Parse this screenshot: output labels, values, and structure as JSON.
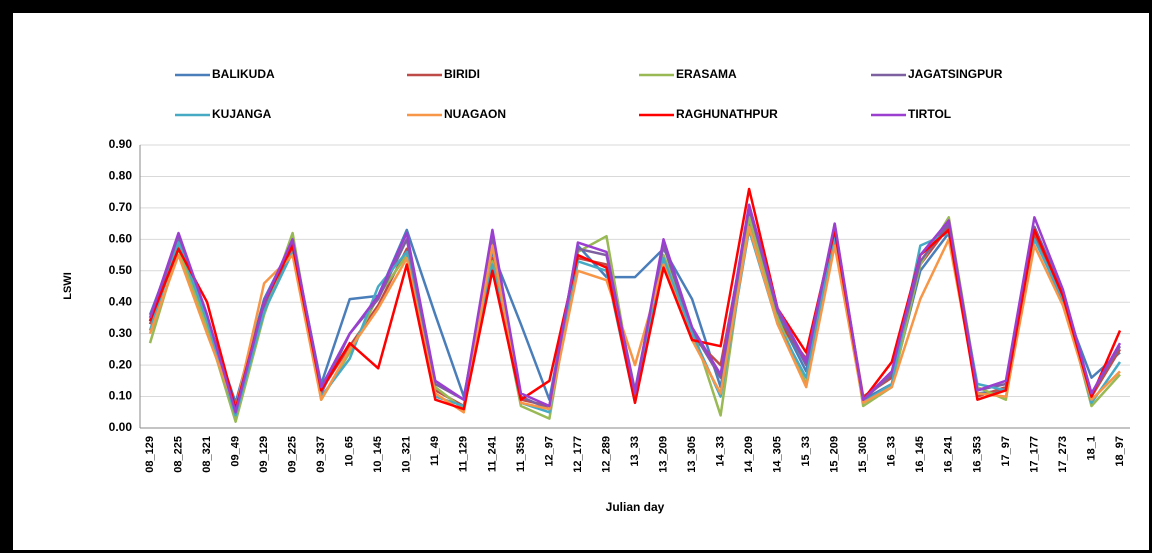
{
  "chart_data": {
    "type": "line",
    "y_label": "LSWI",
    "x_label": "Julian day",
    "categories": [
      "08_129",
      "08_225",
      "08_321",
      "09_49",
      "09_129",
      "09_225",
      "09_337",
      "10_65",
      "10_145",
      "10_321",
      "11_49",
      "11_129",
      "11_241",
      "11_353",
      "12_97",
      "12_177",
      "12_289",
      "13_33",
      "13_209",
      "13_305",
      "14_33",
      "14_209",
      "14_305",
      "15_33",
      "15_209",
      "15_305",
      "16_33",
      "16_145",
      "16_241",
      "16_353",
      "17_97",
      "17_177",
      "17_273",
      "18_1",
      "18_97"
    ],
    "ylim": [
      0,
      0.9
    ],
    "yticks": [
      {
        "value": 0,
        "label": "0.00"
      },
      {
        "value": 0.1,
        "label": "0.10"
      },
      {
        "value": 0.2,
        "label": "0.20"
      },
      {
        "value": 0.3,
        "label": "0.30"
      },
      {
        "value": 0.4,
        "label": "0.40"
      },
      {
        "value": 0.5,
        "label": "0.50"
      },
      {
        "value": 0.6,
        "label": "0.60"
      },
      {
        "value": 0.7,
        "label": "0.70"
      },
      {
        "value": 0.8,
        "label": "0.80"
      },
      {
        "value": 0.9,
        "label": "0.90"
      }
    ],
    "grid": true,
    "series": [
      {
        "name": "BALIKUDA",
        "color": "#4a7ebb",
        "values": [
          0.36,
          0.6,
          0.35,
          0.08,
          0.41,
          0.59,
          0.14,
          0.41,
          0.42,
          0.63,
          0.36,
          0.1,
          0.56,
          0.33,
          0.09,
          0.58,
          0.48,
          0.48,
          0.57,
          0.41,
          0.13,
          0.66,
          0.36,
          0.18,
          0.6,
          0.09,
          0.14,
          0.5,
          0.62,
          0.11,
          0.12,
          0.61,
          0.4,
          0.16,
          0.24
        ]
      },
      {
        "name": "BIRIDI",
        "color": "#be4b48",
        "values": [
          0.33,
          0.58,
          0.33,
          0.05,
          0.38,
          0.57,
          0.12,
          0.26,
          0.39,
          0.57,
          0.12,
          0.07,
          0.54,
          0.09,
          0.07,
          0.54,
          0.52,
          0.1,
          0.53,
          0.29,
          0.2,
          0.68,
          0.34,
          0.22,
          0.63,
          0.1,
          0.16,
          0.52,
          0.64,
          0.1,
          0.13,
          0.62,
          0.41,
          0.1,
          0.25
        ]
      },
      {
        "name": "ERASAMA",
        "color": "#98b954",
        "values": [
          0.27,
          0.57,
          0.32,
          0.02,
          0.36,
          0.62,
          0.09,
          0.24,
          0.42,
          0.55,
          0.13,
          0.06,
          0.53,
          0.07,
          0.03,
          0.56,
          0.61,
          0.09,
          0.55,
          0.32,
          0.04,
          0.67,
          0.35,
          0.14,
          0.65,
          0.07,
          0.13,
          0.52,
          0.67,
          0.13,
          0.09,
          0.63,
          0.42,
          0.07,
          0.17
        ]
      },
      {
        "name": "JAGATSINGPUR",
        "color": "#7d60a0",
        "values": [
          0.34,
          0.61,
          0.35,
          0.05,
          0.39,
          0.59,
          0.11,
          0.3,
          0.41,
          0.6,
          0.14,
          0.09,
          0.61,
          0.1,
          0.06,
          0.57,
          0.55,
          0.12,
          0.58,
          0.31,
          0.16,
          0.7,
          0.37,
          0.2,
          0.64,
          0.09,
          0.17,
          0.53,
          0.65,
          0.12,
          0.14,
          0.64,
          0.43,
          0.11,
          0.26
        ]
      },
      {
        "name": "KUJANGA",
        "color": "#46aac5",
        "values": [
          0.31,
          0.59,
          0.34,
          0.04,
          0.37,
          0.56,
          0.1,
          0.22,
          0.45,
          0.56,
          0.1,
          0.07,
          0.52,
          0.08,
          0.05,
          0.53,
          0.5,
          0.08,
          0.54,
          0.3,
          0.1,
          0.63,
          0.33,
          0.16,
          0.61,
          0.08,
          0.14,
          0.58,
          0.62,
          0.14,
          0.12,
          0.6,
          0.41,
          0.08,
          0.21
        ]
      },
      {
        "name": "NUAGAON",
        "color": "#f79646",
        "values": [
          0.3,
          0.55,
          0.3,
          0.06,
          0.46,
          0.55,
          0.09,
          0.25,
          0.38,
          0.54,
          0.11,
          0.05,
          0.58,
          0.08,
          0.06,
          0.5,
          0.47,
          0.2,
          0.52,
          0.28,
          0.11,
          0.64,
          0.33,
          0.13,
          0.58,
          0.08,
          0.13,
          0.41,
          0.6,
          0.11,
          0.1,
          0.58,
          0.39,
          0.09,
          0.18
        ]
      },
      {
        "name": "RAGHUNATHPUR",
        "color": "#ff0000",
        "values": [
          0.34,
          0.57,
          0.4,
          0.06,
          0.4,
          0.58,
          0.12,
          0.27,
          0.19,
          0.52,
          0.09,
          0.06,
          0.5,
          0.09,
          0.15,
          0.55,
          0.51,
          0.08,
          0.51,
          0.28,
          0.26,
          0.76,
          0.38,
          0.24,
          0.63,
          0.09,
          0.21,
          0.55,
          0.63,
          0.09,
          0.12,
          0.63,
          0.42,
          0.1,
          0.31
        ]
      },
      {
        "name": "TIRTOL",
        "color": "#9b3fd0",
        "values": [
          0.35,
          0.62,
          0.36,
          0.05,
          0.4,
          0.6,
          0.13,
          0.3,
          0.42,
          0.62,
          0.15,
          0.09,
          0.63,
          0.11,
          0.07,
          0.59,
          0.56,
          0.11,
          0.6,
          0.32,
          0.17,
          0.71,
          0.38,
          0.21,
          0.65,
          0.09,
          0.18,
          0.55,
          0.66,
          0.12,
          0.15,
          0.67,
          0.44,
          0.11,
          0.27
        ]
      }
    ]
  }
}
